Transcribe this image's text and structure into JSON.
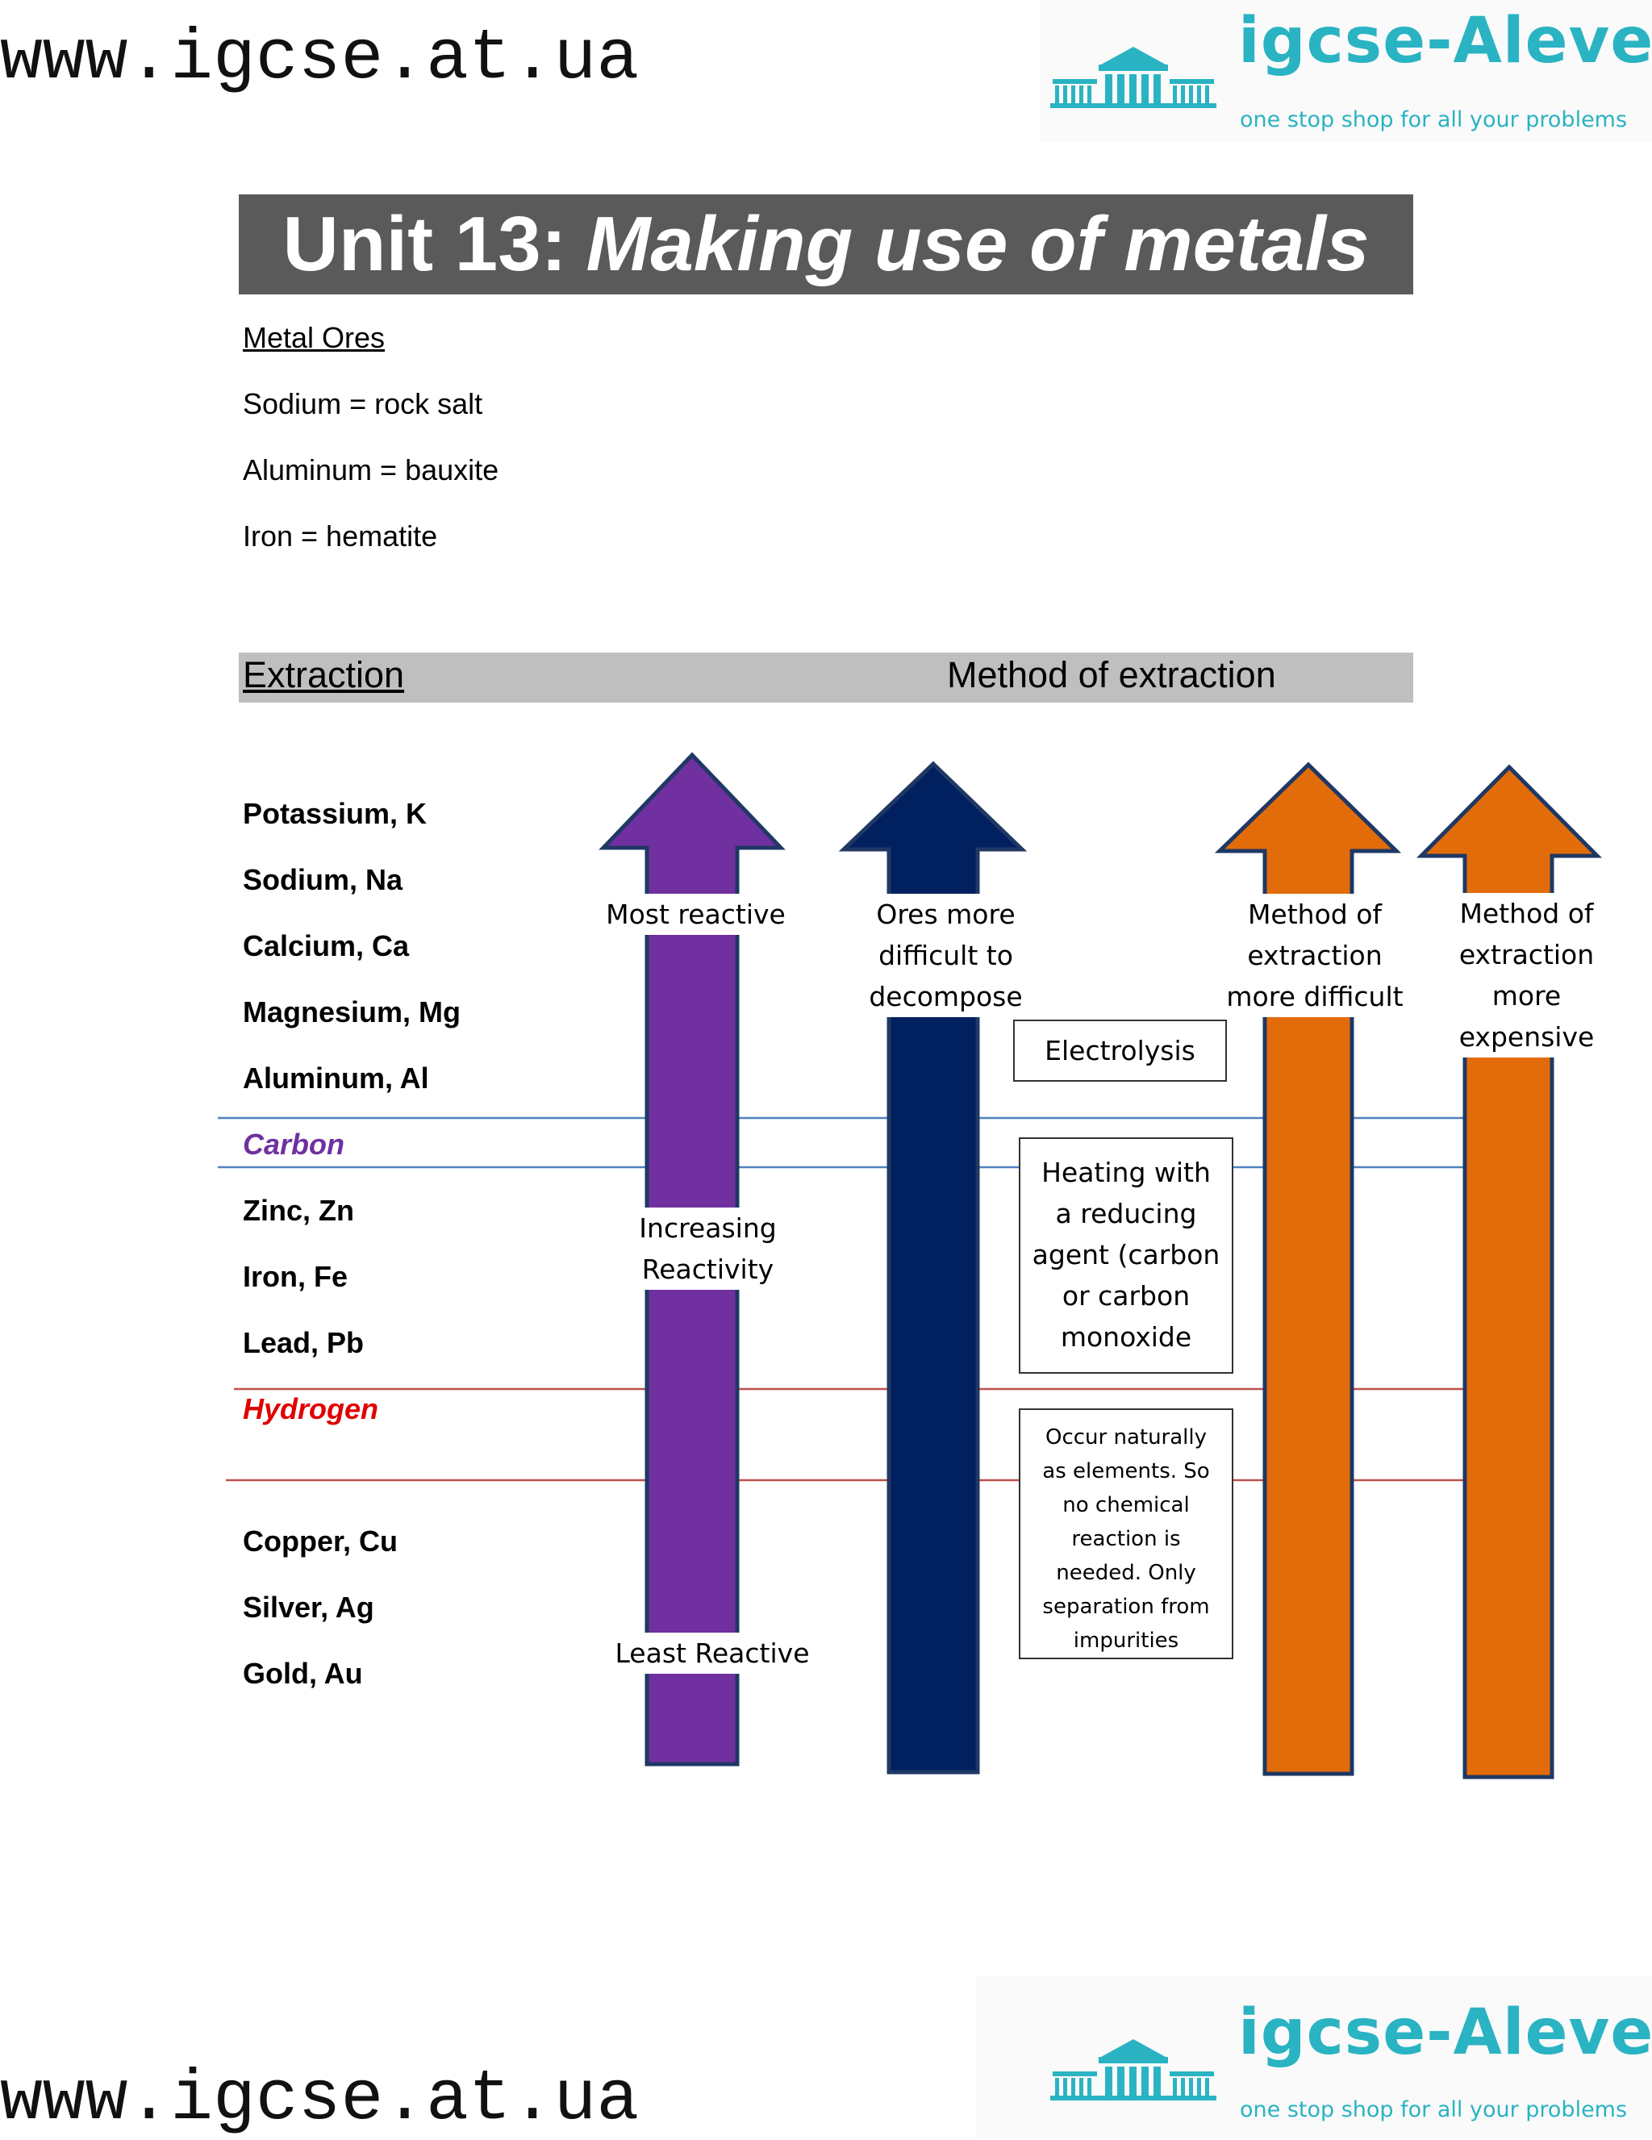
{
  "header": {
    "site_url": "www.igcse.at.ua",
    "brand_name": "igcse-Alevel",
    "brand_tagline": "one stop shop for all your problems"
  },
  "title": {
    "prefix": "Unit 13:",
    "main": "Making use of metals"
  },
  "ores": {
    "heading": "Metal Ores",
    "items": [
      "Sodium = rock salt",
      "Aluminum = bauxite",
      "Iron = hematite"
    ]
  },
  "extraction": {
    "heading": "Extraction",
    "method_heading": "Method of extraction",
    "metals": [
      "Potassium, K",
      "Sodium, Na",
      "Calcium, Ca",
      "Magnesium, Mg",
      "Aluminum, Al",
      "Carbon",
      "Zinc, Zn",
      "Iron, Fe",
      "Lead, Pb",
      "Hydrogen",
      "Copper, Cu",
      "Silver, Ag",
      "Gold, Au"
    ],
    "reactivity_arrow": {
      "top_label": "Most reactive",
      "middle_label": [
        "Increasing",
        "Reactivity"
      ],
      "bottom_label": "Least Reactive",
      "color": "#7030a0"
    },
    "decompose_arrow": {
      "label": [
        "Ores more",
        "difficult to",
        "decompose"
      ],
      "color": "#002060"
    },
    "difficulty_arrow": {
      "label": [
        "Method of",
        "extraction",
        "more difficult"
      ],
      "color": "#e36c0a"
    },
    "expense_arrow": {
      "label": [
        "Method of",
        "extraction",
        "more",
        "expensive"
      ],
      "color": "#e36c0a"
    },
    "methods": {
      "electrolysis": "Electrolysis",
      "reduction": [
        "Heating with",
        "a reducing",
        "agent (carbon",
        "or carbon",
        "monoxide"
      ],
      "native": [
        "Occur naturally",
        "as elements. So",
        "no chemical",
        "reaction is",
        "needed. Only",
        "separation from",
        "impurities"
      ]
    },
    "line_colors": {
      "carbon": "#4f81bd",
      "hydrogen": "#c0504d"
    }
  },
  "footer": {
    "site_url": "www.igcse.at.ua",
    "brand_name": "igcse-Alevel",
    "brand_tagline": "one stop shop for all your problems"
  }
}
